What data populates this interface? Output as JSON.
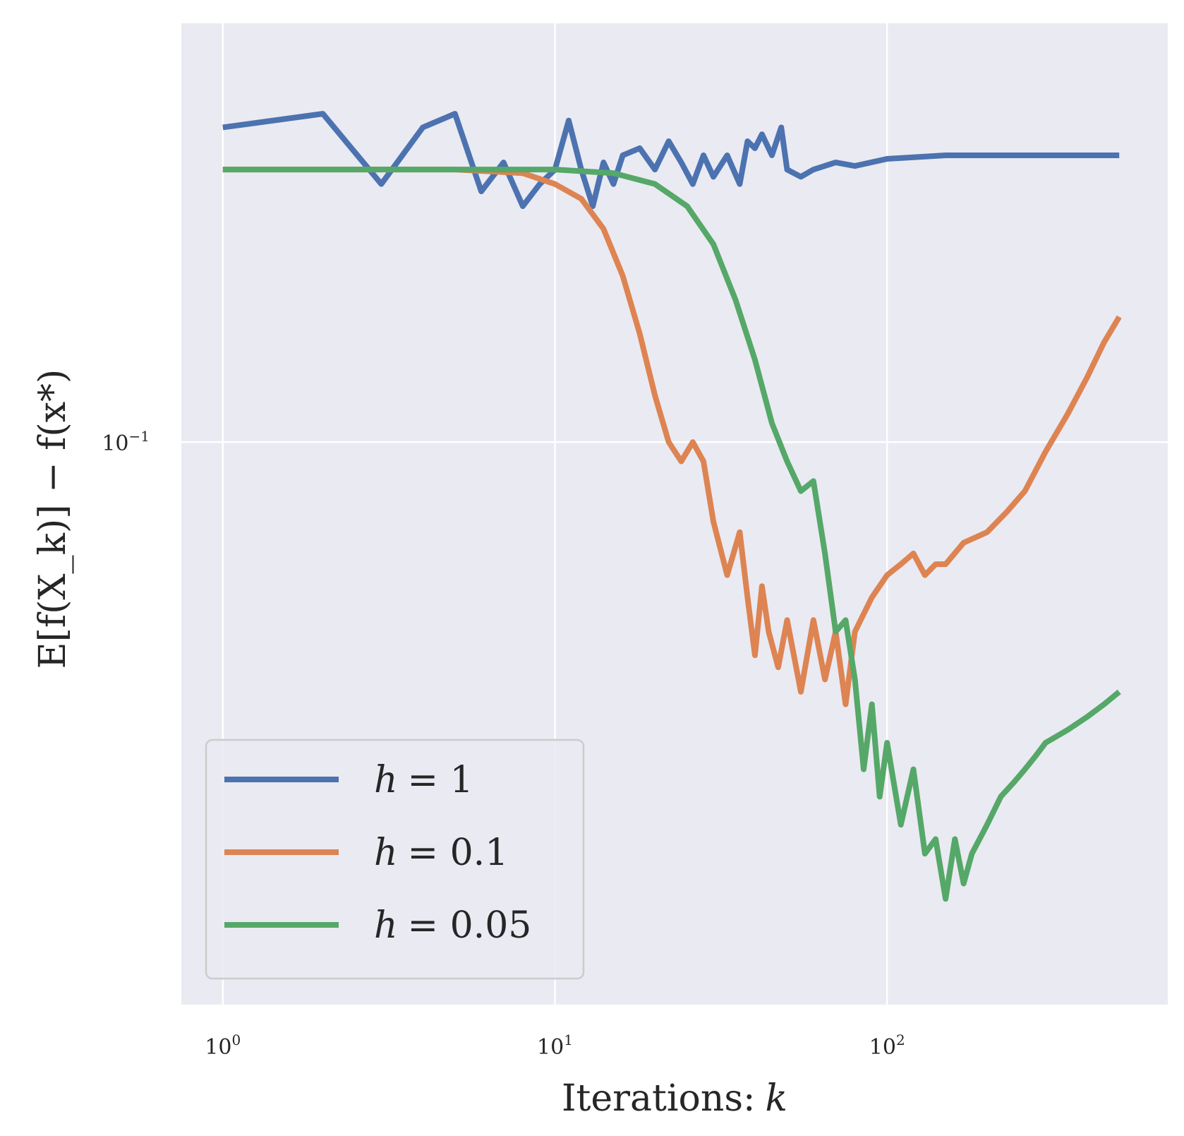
{
  "chart_data": {
    "type": "line",
    "scale": {
      "x": "log",
      "y": "log"
    },
    "xlim": [
      0.75,
      700
    ],
    "ylim": [
      0.0555,
      0.155
    ],
    "grid": true,
    "xlabel": {
      "text": "Iterations:",
      "var": "k"
    },
    "ylabel": "E[f(X_k)] − f(x*)",
    "x_ticks": [
      {
        "value": 1,
        "base": "10",
        "exp": "0"
      },
      {
        "value": 10,
        "base": "10",
        "exp": "1"
      },
      {
        "value": 100,
        "base": "10",
        "exp": "2"
      }
    ],
    "y_ticks": [
      {
        "value": 0.1,
        "base": "10",
        "exp": "−1"
      }
    ],
    "legend": {
      "location": "lower-left"
    },
    "series": [
      {
        "name": "h = 1",
        "var": "h",
        "rel": "= 1",
        "color": "#4C72B0",
        "points": [
          [
            1,
            0.139
          ],
          [
            2,
            0.141
          ],
          [
            3,
            0.131
          ],
          [
            4,
            0.139
          ],
          [
            5,
            0.141
          ],
          [
            6,
            0.13
          ],
          [
            7,
            0.134
          ],
          [
            8,
            0.128
          ],
          [
            9,
            0.131
          ],
          [
            10,
            0.133
          ],
          [
            11,
            0.14
          ],
          [
            12,
            0.133
          ],
          [
            13,
            0.128
          ],
          [
            14,
            0.134
          ],
          [
            15,
            0.131
          ],
          [
            16,
            0.135
          ],
          [
            18,
            0.136
          ],
          [
            20,
            0.133
          ],
          [
            22,
            0.137
          ],
          [
            24,
            0.134
          ],
          [
            26,
            0.131
          ],
          [
            28,
            0.135
          ],
          [
            30,
            0.132
          ],
          [
            33,
            0.135
          ],
          [
            36,
            0.131
          ],
          [
            38,
            0.137
          ],
          [
            40,
            0.136
          ],
          [
            42,
            0.138
          ],
          [
            45,
            0.135
          ],
          [
            48,
            0.139
          ],
          [
            50,
            0.133
          ],
          [
            55,
            0.132
          ],
          [
            60,
            0.133
          ],
          [
            70,
            0.134
          ],
          [
            80,
            0.1335
          ],
          [
            100,
            0.1345
          ],
          [
            150,
            0.135
          ],
          [
            300,
            0.135
          ],
          [
            500,
            0.135
          ]
        ]
      },
      {
        "name": "h = 0.1",
        "var": "h",
        "rel": "= 0.1",
        "color": "#DD8452",
        "points": [
          [
            1,
            0.133
          ],
          [
            5,
            0.133
          ],
          [
            8,
            0.1325
          ],
          [
            10,
            0.131
          ],
          [
            12,
            0.129
          ],
          [
            14,
            0.125
          ],
          [
            16,
            0.119
          ],
          [
            18,
            0.112
          ],
          [
            20,
            0.105
          ],
          [
            22,
            0.1
          ],
          [
            24,
            0.098
          ],
          [
            26,
            0.1
          ],
          [
            28,
            0.098
          ],
          [
            30,
            0.092
          ],
          [
            33,
            0.087
          ],
          [
            36,
            0.091
          ],
          [
            38,
            0.085
          ],
          [
            40,
            0.08
          ],
          [
            42,
            0.086
          ],
          [
            44,
            0.082
          ],
          [
            47,
            0.079
          ],
          [
            50,
            0.083
          ],
          [
            55,
            0.077
          ],
          [
            60,
            0.083
          ],
          [
            65,
            0.078
          ],
          [
            70,
            0.082
          ],
          [
            75,
            0.076
          ],
          [
            80,
            0.082
          ],
          [
            90,
            0.085
          ],
          [
            100,
            0.087
          ],
          [
            110,
            0.088
          ],
          [
            120,
            0.089
          ],
          [
            130,
            0.087
          ],
          [
            140,
            0.088
          ],
          [
            150,
            0.088
          ],
          [
            170,
            0.09
          ],
          [
            200,
            0.091
          ],
          [
            230,
            0.093
          ],
          [
            260,
            0.095
          ],
          [
            300,
            0.099
          ],
          [
            350,
            0.103
          ],
          [
            400,
            0.107
          ],
          [
            450,
            0.111
          ],
          [
            500,
            0.114
          ]
        ]
      },
      {
        "name": "h = 0.05",
        "var": "h",
        "rel": "= 0.05",
        "color": "#55A868",
        "points": [
          [
            1,
            0.133
          ],
          [
            5,
            0.133
          ],
          [
            10,
            0.133
          ],
          [
            15,
            0.1325
          ],
          [
            20,
            0.131
          ],
          [
            25,
            0.128
          ],
          [
            30,
            0.123
          ],
          [
            35,
            0.116
          ],
          [
            40,
            0.109
          ],
          [
            45,
            0.102
          ],
          [
            50,
            0.098
          ],
          [
            55,
            0.095
          ],
          [
            60,
            0.096
          ],
          [
            65,
            0.089
          ],
          [
            70,
            0.082
          ],
          [
            75,
            0.083
          ],
          [
            80,
            0.078
          ],
          [
            85,
            0.071
          ],
          [
            90,
            0.076
          ],
          [
            95,
            0.069
          ],
          [
            100,
            0.073
          ],
          [
            110,
            0.067
          ],
          [
            120,
            0.071
          ],
          [
            130,
            0.065
          ],
          [
            140,
            0.066
          ],
          [
            150,
            0.062
          ],
          [
            160,
            0.066
          ],
          [
            170,
            0.063
          ],
          [
            180,
            0.065
          ],
          [
            200,
            0.067
          ],
          [
            220,
            0.069
          ],
          [
            240,
            0.07
          ],
          [
            260,
            0.071
          ],
          [
            280,
            0.072
          ],
          [
            300,
            0.073
          ],
          [
            350,
            0.074
          ],
          [
            400,
            0.075
          ],
          [
            450,
            0.076
          ],
          [
            500,
            0.077
          ]
        ]
      }
    ]
  }
}
